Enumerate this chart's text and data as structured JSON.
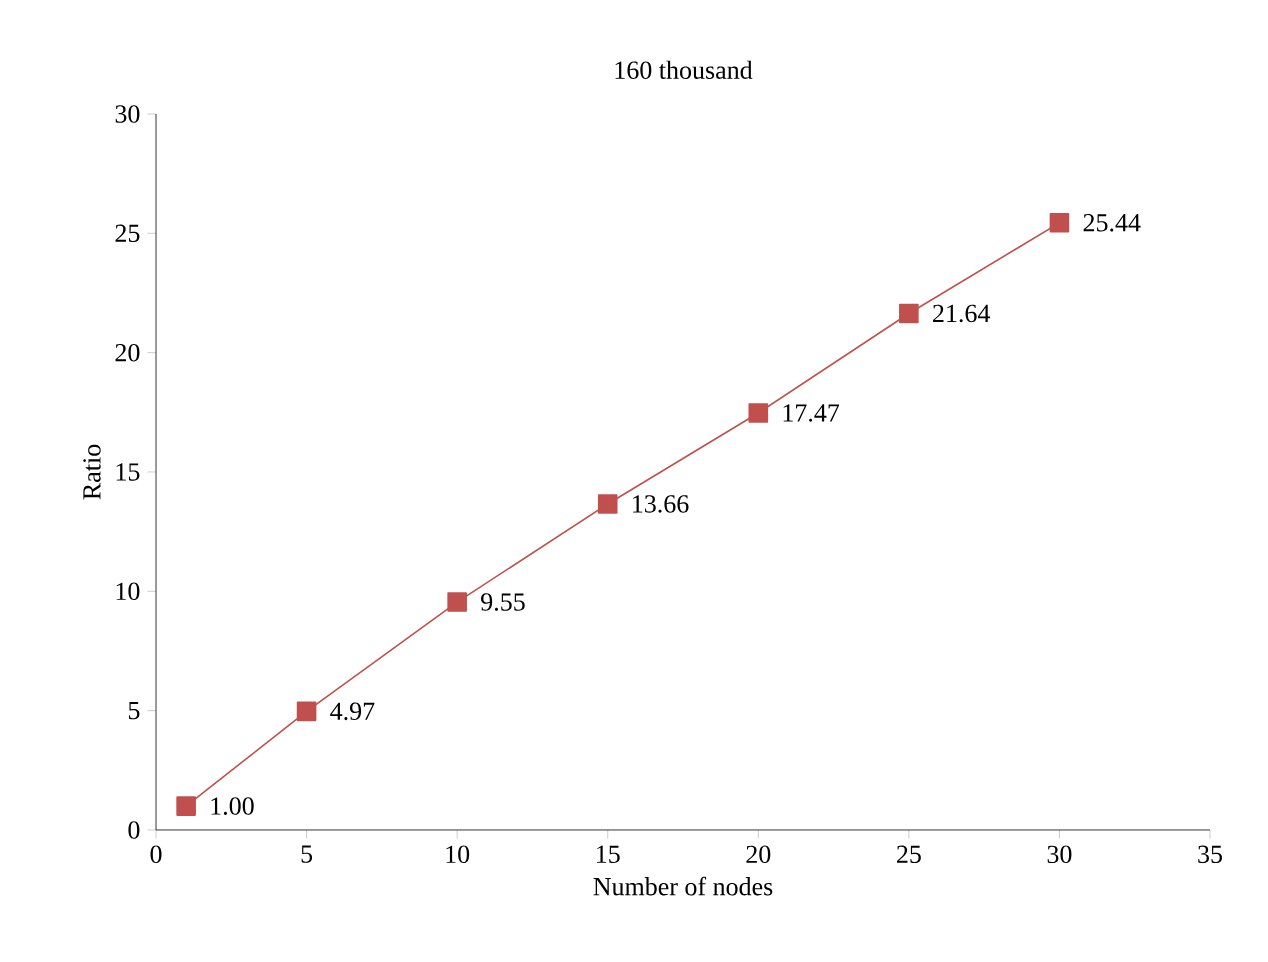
{
  "chart_data": {
    "type": "line",
    "title": "160 thousand",
    "xlabel": "Number of nodes",
    "ylabel": "Ratio",
    "x": [
      1,
      5,
      10,
      15,
      20,
      25,
      30
    ],
    "values": [
      1.0,
      4.97,
      9.55,
      13.66,
      17.47,
      21.64,
      25.44
    ],
    "value_labels": [
      "1.00",
      "4.97",
      "9.55",
      "13.66",
      "17.47",
      "21.64",
      "25.44"
    ],
    "color": "#c0504d",
    "marker": "square",
    "line_style": "solid",
    "grid": false,
    "xlim": [
      0,
      35
    ],
    "xticks": [
      0,
      5,
      10,
      15,
      20,
      25,
      30,
      35
    ],
    "ylim": [
      0,
      30
    ],
    "yticks": [
      0,
      5,
      10,
      15,
      20,
      25,
      30
    ]
  }
}
